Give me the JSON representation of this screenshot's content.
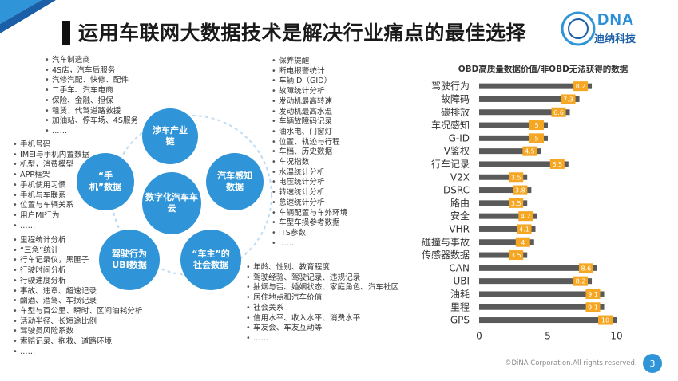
{
  "title": "运用车联网大数据技术是解决行业痛点的最佳选择",
  "logo": {
    "brand": "DNA",
    "name": "迪纳科技"
  },
  "industry_chain": [
    "汽车制造商",
    "4S店，汽车后服务",
    "汽修汽配、快修、配件",
    "二手车、汽车电商",
    "保险、金融、担保",
    "租赁、代驾道路救援",
    "加油站、停车场、4S服务",
    "……"
  ],
  "phone_data": [
    "手机号码",
    "IMEI与手机内置数据",
    "机型，消费模型",
    "APP框架",
    "手机使用习惯",
    "手机与车联系",
    "位置与车辆关系",
    "用户MI行为",
    "……"
  ],
  "driving_data": [
    "里程统计分析",
    "“三急”统计",
    "行车记录仪，黑匣子",
    "行驶时间分析",
    "行驶速度分析",
    "事故、违章、超速记录",
    "酗酒、酒驾、车损记录",
    "车型与百公里、瞬时、区间油耗分析",
    "活动半径、长短途比例",
    "驾驶员风险系数",
    "索赔记录、拖救、道路环境",
    "……"
  ],
  "vehicle_data": [
    "保养提醒",
    "断电报警统计",
    "车辆ID（GID）",
    "故障统计分析",
    "发动机最高转速",
    "发动机最高水温",
    "车辆故障码记录",
    "油水电、门窗灯",
    "位置、轨迹与行程",
    "车档、历史数据",
    "车况指数",
    "水温统计分析",
    "电压统计分析",
    "转速统计分析",
    "怠速统计分析",
    "车辆配置与车外环境",
    "车型车损参考数据",
    "ITS参数",
    "……"
  ],
  "owner_data": [
    "年龄、性别、教育程度",
    "驾驶经验、驾驶记录、违规记录",
    "抽烟与否、婚姻状态、家庭角色、汽车社区",
    "居住地点和汽车价值",
    "社会关系",
    "信用水平、收入水平、消费水平",
    "车友会、车友互动等",
    "……"
  ],
  "hubs": {
    "center": "数字化汽车车云",
    "industry": "涉车产业链",
    "phone": "“手机”数据",
    "vehicle": "汽车感知数据",
    "driving": "驾驶行为UBI数据",
    "owner": "“车主”的社会数据"
  },
  "chart_data": {
    "type": "bar",
    "orientation": "horizontal",
    "title": "OBD高质量数据价值/非OBD无法获得的数据",
    "categories": [
      "驾驶行为",
      "故障码",
      "碳排放",
      "车况感知",
      "G-ID",
      "V鉴权",
      "行车记录",
      "V2X",
      "DSRC",
      "路由",
      "安全",
      "VHR",
      "碰撞与事故",
      "传感器数据",
      "CAN",
      "UBI",
      "油耗",
      "里程",
      "GPS"
    ],
    "values": [
      8.2,
      7.3,
      6.6,
      5,
      5,
      4.5,
      6.5,
      3.5,
      3.8,
      3.5,
      4.2,
      4.1,
      4,
      3.5,
      8.6,
      8.2,
      9.1,
      9.1,
      10
    ],
    "data_labels": [
      "8.2",
      "7.3",
      "6.6",
      "5",
      "5",
      "4.5",
      "6.5",
      "3.5",
      "3.8",
      "3.5",
      "4.2",
      "4.1",
      "4",
      "3.5",
      "8.6",
      "8.2",
      "9.1",
      "9.1",
      "10"
    ],
    "xlim": [
      0,
      10
    ],
    "xticks": [
      "0",
      "5",
      "10"
    ],
    "bar_color": "#5a5a5a",
    "label_color": "#f5a623"
  },
  "footer": "©DiNA Corporation.All rights reserved.",
  "page_number": "3"
}
